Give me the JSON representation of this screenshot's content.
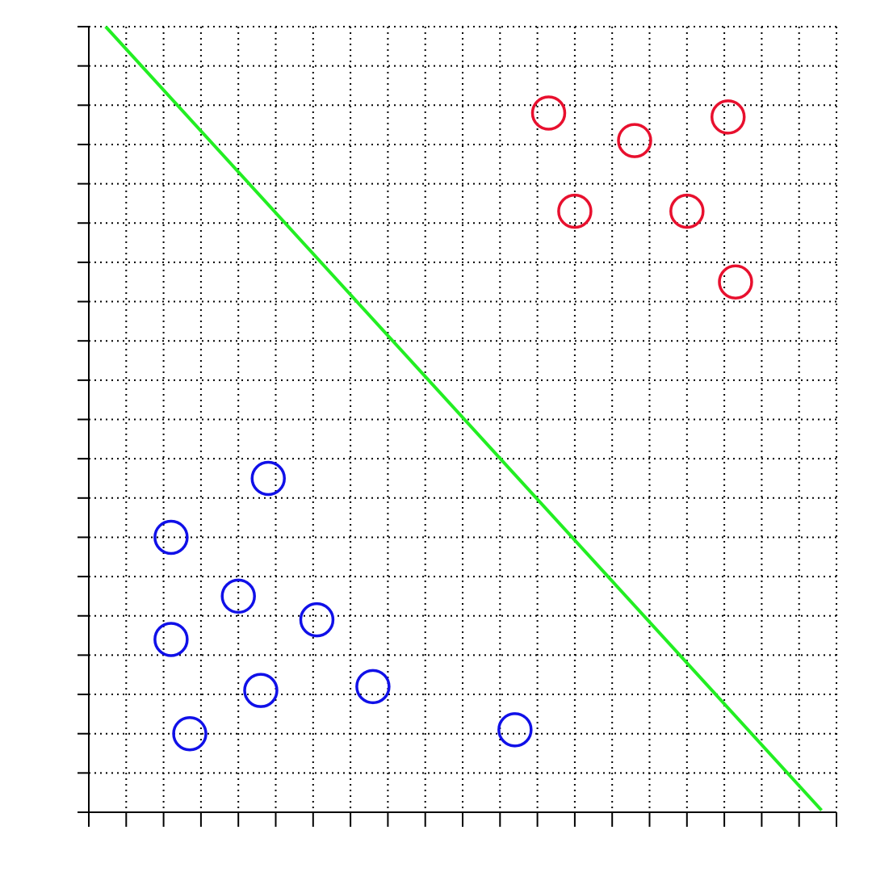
{
  "chart_data": {
    "type": "scatter",
    "title": "",
    "xlabel": "",
    "ylabel": "",
    "xlim": [
      0,
      20
    ],
    "ylim": [
      0,
      20
    ],
    "x_ticks": [
      0,
      1,
      2,
      3,
      4,
      5,
      6,
      7,
      8,
      9,
      10,
      11,
      12,
      13,
      14,
      15,
      16,
      17,
      18,
      19,
      20
    ],
    "y_ticks": [
      0,
      1,
      2,
      3,
      4,
      5,
      6,
      7,
      8,
      9,
      10,
      11,
      12,
      13,
      14,
      15,
      16,
      17,
      18,
      19,
      20
    ],
    "grid": true,
    "grid_style": "dotted",
    "series": [
      {
        "color": "#e8102e",
        "marker": "open-circle",
        "points": [
          {
            "x": 12.3,
            "y": 17.8
          },
          {
            "x": 14.6,
            "y": 17.1
          },
          {
            "x": 17.1,
            "y": 17.7
          },
          {
            "x": 13.0,
            "y": 15.3
          },
          {
            "x": 16.0,
            "y": 15.3
          },
          {
            "x": 17.3,
            "y": 13.5
          }
        ]
      },
      {
        "color": "#1010e8",
        "marker": "open-circle",
        "points": [
          {
            "x": 4.8,
            "y": 8.5
          },
          {
            "x": 2.2,
            "y": 7.0
          },
          {
            "x": 4.0,
            "y": 5.5
          },
          {
            "x": 6.1,
            "y": 4.9
          },
          {
            "x": 2.2,
            "y": 4.4
          },
          {
            "x": 4.6,
            "y": 3.1
          },
          {
            "x": 7.6,
            "y": 3.2
          },
          {
            "x": 2.7,
            "y": 2.0
          },
          {
            "x": 11.4,
            "y": 2.1
          }
        ]
      }
    ],
    "lines": [
      {
        "color": "#22ee22",
        "from": {
          "x": 0.45,
          "y": 20
        },
        "to": {
          "x": 19.6,
          "y": 0.05
        }
      }
    ]
  }
}
